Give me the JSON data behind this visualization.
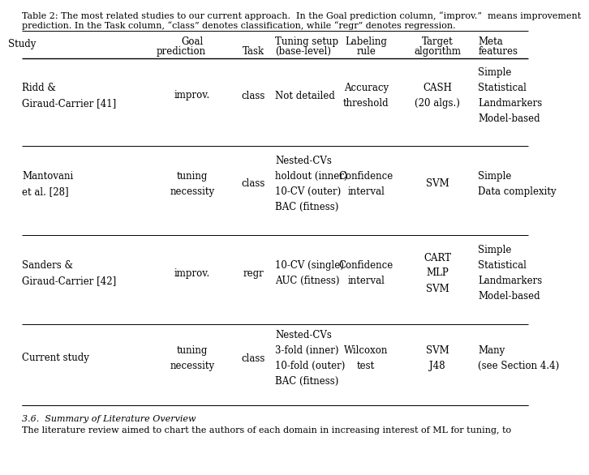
{
  "caption_line1": "Table 2: The most related studies to our current approach.  In the Goal prediction column, “improv.”  means improvement",
  "caption_line2": "prediction. In the Task column, “class” denotes classification, while “regr” denotes regression.",
  "footer": "3.6.  Summary of Literature Overview",
  "footer2": "The literature review aimed to chart the authors of each domain in increasing interest of ML for tuning, to",
  "col_headers_line1": [
    "Study",
    "Goal",
    "Tuning setup",
    "Labeling",
    "Target",
    "Meta"
  ],
  "col_headers_line2": [
    "",
    "prediction",
    "Task",
    "(base-level)",
    "rule",
    "algorithm",
    "features"
  ],
  "rows": [
    {
      "study": "Ridd &\nGiraud-Carrier [41]",
      "goal": "improv.",
      "task": "class",
      "tuning": "Not detailed",
      "labeling": "Accuracy\nthreshold",
      "target": "CASH\n(20 algs.)",
      "meta": "Simple\nStatistical\nLandmarkers\nModel-based"
    },
    {
      "study": "Mantovani\net al. [28]",
      "goal": "tuning\nnecessity",
      "task": "class",
      "tuning": "Nested-CVs\nholdout (inner)\n10-CV (outer)\nBAC (fitness)",
      "labeling": "Confidence\ninterval",
      "target": "SVM",
      "meta": "Simple\nData complexity"
    },
    {
      "study": "Sanders &\nGiraud-Carrier [42]",
      "goal": "improv.",
      "task": "regr",
      "tuning": "10-CV (single)\nAUC (fitness)",
      "labeling": "Confidence\ninterval",
      "target": "CART\nMLP\nSVM",
      "meta": "Simple\nStatistical\nLandmarkers\nModel-based"
    },
    {
      "study": "Current study",
      "goal": "tuning\nnecessity",
      "task": "class",
      "tuning": "Nested-CVs\n3-fold (inner)\n10-fold (outer)\nBAC (fitness)",
      "labeling": "Wilcoxon\ntest",
      "target": "SVM\nJ48",
      "meta": "Many\n(see Section 4.4)"
    }
  ],
  "background": "#ffffff",
  "fontsize": 8.5,
  "fontsize_caption": 8.0
}
